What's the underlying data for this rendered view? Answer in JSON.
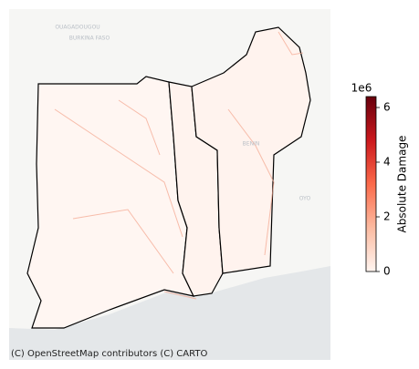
{
  "map": {
    "attribution": "(C) OpenStreetMap contributors (C) CARTO",
    "place_labels": [
      "OUAGADOUGOU",
      "BURKINA FASO",
      "BENIN",
      "OYO"
    ],
    "colorbar": {
      "label": "Absolute Damage",
      "offset_label": "1e6",
      "lim": [
        0,
        6.4
      ],
      "ticks": [
        0,
        2,
        4,
        6
      ]
    }
  }
}
